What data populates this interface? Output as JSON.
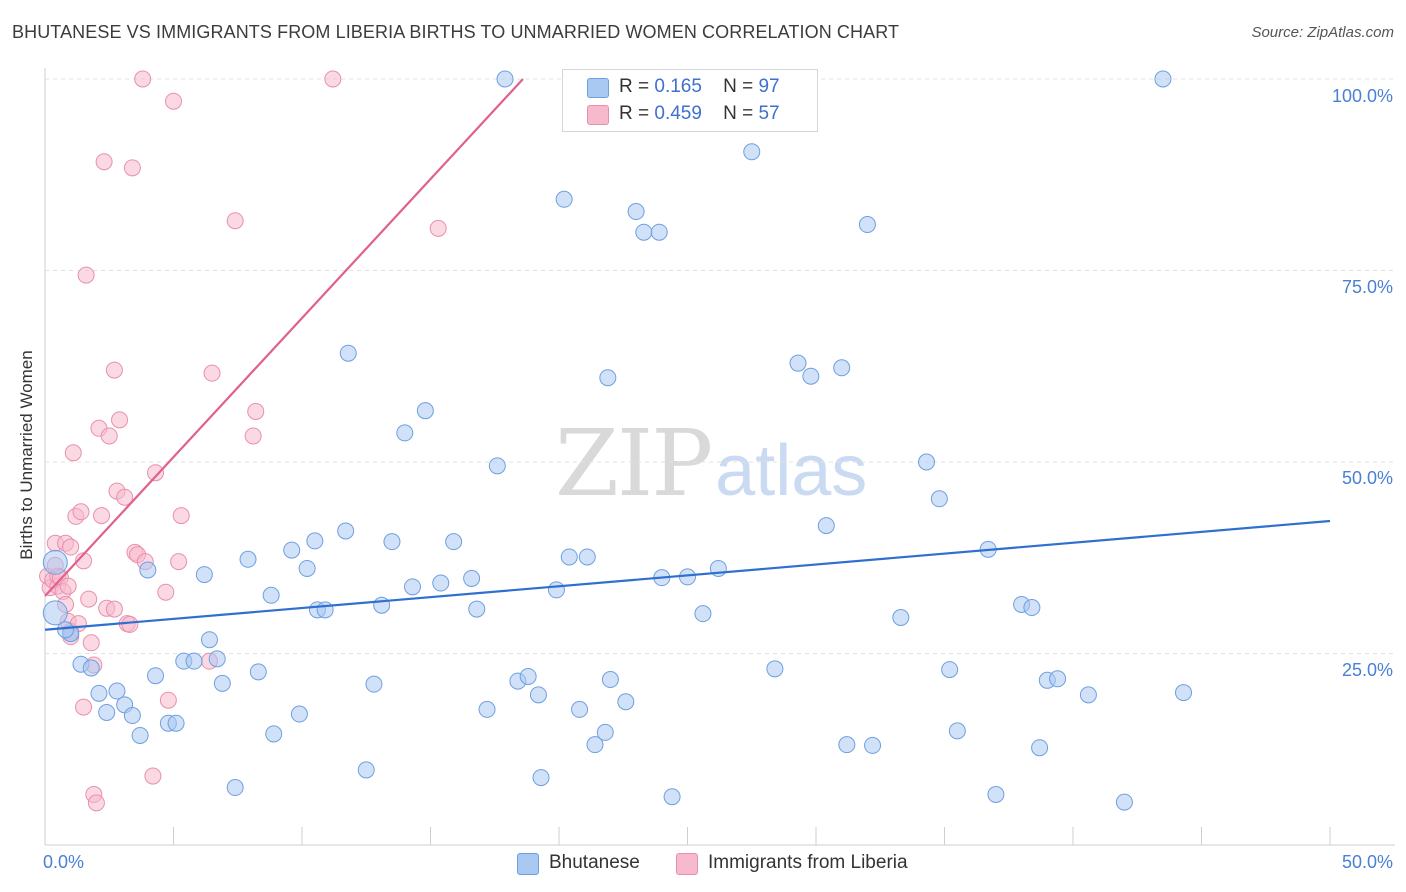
{
  "title": "BHUTANESE VS IMMIGRANTS FROM LIBERIA BIRTHS TO UNMARRIED WOMEN CORRELATION CHART",
  "source": "Source: ZipAtlas.com",
  "watermark": {
    "zip": "ZIP",
    "atlas": "atlas"
  },
  "legend": {
    "r_label": "R =",
    "n_label": "N =",
    "series": [
      {
        "r": "0.165",
        "n": "97"
      },
      {
        "r": "0.459",
        "n": "57"
      }
    ]
  },
  "bottom_legend": [
    "Bhutanese",
    "Immigrants from Liberia"
  ],
  "colors": {
    "blue_fill": "#a9c8f2",
    "blue_stroke": "#6f9fe0",
    "blue_line": "#2f6fcf",
    "pink_fill": "#f7b9cc",
    "pink_stroke": "#e98fae",
    "pink_line": "#e0608e",
    "tick_text": "#4a7fd6",
    "grid": "#e3e3e3"
  },
  "chart_data": {
    "type": "scatter",
    "title": "BHUTANESE VS IMMIGRANTS FROM LIBERIA BIRTHS TO UNMARRIED WOMEN CORRELATION CHART",
    "xlabel": "",
    "ylabel": "Births to Unmarried Women",
    "xlim": [
      0,
      50
    ],
    "ylim": [
      0,
      100
    ],
    "x_tick_labels": [
      "0.0%",
      "50.0%"
    ],
    "y_ticks": [
      25,
      50,
      75,
      100
    ],
    "y_tick_labels": [
      "25.0%",
      "50.0%",
      "75.0%",
      "100.0%"
    ],
    "grid": true,
    "legend_position": "top-center",
    "series": [
      {
        "name": "Bhutanese",
        "R": 0.165,
        "N": 97,
        "trend": {
          "x": [
            0,
            50
          ],
          "y": [
            28.1,
            42.3
          ]
        },
        "points": [
          [
            0.4,
            30.3
          ],
          [
            0.4,
            36.9
          ],
          [
            1.0,
            27.6
          ],
          [
            1.0,
            27.6
          ],
          [
            1.4,
            23.6
          ],
          [
            1.8,
            23.1
          ],
          [
            2.1,
            19.8
          ],
          [
            2.4,
            17.3
          ],
          [
            2.8,
            20.1
          ],
          [
            3.1,
            18.3
          ],
          [
            3.4,
            16.9
          ],
          [
            3.7,
            14.3
          ],
          [
            4.0,
            35.9
          ],
          [
            4.3,
            22.1
          ],
          [
            4.8,
            15.9
          ],
          [
            5.1,
            15.9
          ],
          [
            5.4,
            24.0
          ],
          [
            5.8,
            24.0
          ],
          [
            6.2,
            35.3
          ],
          [
            6.4,
            26.8
          ],
          [
            6.7,
            24.3
          ],
          [
            6.9,
            21.1
          ],
          [
            7.4,
            7.5
          ],
          [
            7.9,
            37.3
          ],
          [
            8.3,
            22.6
          ],
          [
            8.8,
            32.6
          ],
          [
            8.9,
            14.5
          ],
          [
            9.6,
            38.5
          ],
          [
            9.9,
            17.1
          ],
          [
            10.2,
            36.1
          ],
          [
            10.5,
            39.7
          ],
          [
            10.6,
            30.7
          ],
          [
            10.9,
            30.7
          ],
          [
            11.7,
            41.0
          ],
          [
            11.8,
            64.2
          ],
          [
            12.5,
            9.8
          ],
          [
            12.8,
            21.0
          ],
          [
            13.1,
            31.3
          ],
          [
            13.5,
            39.6
          ],
          [
            14.0,
            53.8
          ],
          [
            14.3,
            33.7
          ],
          [
            14.8,
            56.7
          ],
          [
            15.4,
            34.2
          ],
          [
            15.9,
            39.6
          ],
          [
            16.6,
            34.8
          ],
          [
            16.8,
            30.8
          ],
          [
            17.2,
            17.7
          ],
          [
            17.6,
            49.5
          ],
          [
            17.9,
            100.0
          ],
          [
            18.4,
            21.4
          ],
          [
            18.8,
            22.0
          ],
          [
            19.2,
            19.6
          ],
          [
            19.3,
            8.8
          ],
          [
            19.9,
            33.3
          ],
          [
            20.2,
            84.3
          ],
          [
            20.4,
            37.6
          ],
          [
            20.8,
            17.7
          ],
          [
            21.1,
            37.6
          ],
          [
            21.4,
            13.1
          ],
          [
            21.8,
            14.7
          ],
          [
            21.9,
            61.0
          ],
          [
            22.0,
            21.6
          ],
          [
            22.6,
            18.7
          ],
          [
            23.0,
            82.7
          ],
          [
            23.3,
            80.0
          ],
          [
            23.9,
            80.0
          ],
          [
            24.0,
            34.9
          ],
          [
            24.4,
            6.3
          ],
          [
            25.0,
            35.0
          ],
          [
            25.6,
            30.2
          ],
          [
            26.2,
            36.1
          ],
          [
            27.5,
            90.5
          ],
          [
            28.4,
            23.0
          ],
          [
            29.3,
            62.9
          ],
          [
            29.8,
            61.2
          ],
          [
            30.4,
            41.7
          ],
          [
            31.0,
            62.3
          ],
          [
            31.2,
            13.1
          ],
          [
            32.0,
            81.0
          ],
          [
            32.2,
            13.0
          ],
          [
            33.3,
            29.7
          ],
          [
            34.3,
            50.0
          ],
          [
            34.8,
            45.2
          ],
          [
            35.2,
            22.9
          ],
          [
            35.5,
            14.9
          ],
          [
            36.7,
            38.6
          ],
          [
            37.0,
            6.6
          ],
          [
            38.0,
            31.4
          ],
          [
            38.4,
            31.0
          ],
          [
            38.7,
            12.7
          ],
          [
            39.0,
            21.5
          ],
          [
            39.4,
            21.7
          ],
          [
            40.6,
            19.6
          ],
          [
            42.0,
            5.6
          ],
          [
            43.5,
            100.0
          ],
          [
            44.3,
            19.9
          ],
          [
            0.8,
            28.1
          ]
        ]
      },
      {
        "name": "Immigrants from Liberia",
        "R": 0.459,
        "N": 57,
        "trend": {
          "x": [
            0,
            18.6
          ],
          "y": [
            32.5,
            100.0
          ]
        },
        "points": [
          [
            0.1,
            35.1
          ],
          [
            0.2,
            33.6
          ],
          [
            0.3,
            34.6
          ],
          [
            0.4,
            36.5
          ],
          [
            0.4,
            39.4
          ],
          [
            0.5,
            33.8
          ],
          [
            0.5,
            35.1
          ],
          [
            0.6,
            34.9
          ],
          [
            0.7,
            33.1
          ],
          [
            0.8,
            31.4
          ],
          [
            0.8,
            39.4
          ],
          [
            0.9,
            29.2
          ],
          [
            0.9,
            33.8
          ],
          [
            1.0,
            27.9
          ],
          [
            1.0,
            27.2
          ],
          [
            1.0,
            38.9
          ],
          [
            1.1,
            51.2
          ],
          [
            1.2,
            42.9
          ],
          [
            1.3,
            28.9
          ],
          [
            1.4,
            43.5
          ],
          [
            1.5,
            37.1
          ],
          [
            1.5,
            18.0
          ],
          [
            1.6,
            74.4
          ],
          [
            1.7,
            32.1
          ],
          [
            1.8,
            26.4
          ],
          [
            1.9,
            23.5
          ],
          [
            1.9,
            6.6
          ],
          [
            2.0,
            5.5
          ],
          [
            2.1,
            54.4
          ],
          [
            2.2,
            43.0
          ],
          [
            2.3,
            89.2
          ],
          [
            2.4,
            30.9
          ],
          [
            2.5,
            53.4
          ],
          [
            2.7,
            30.8
          ],
          [
            2.7,
            62.0
          ],
          [
            2.8,
            46.2
          ],
          [
            2.9,
            55.5
          ],
          [
            3.1,
            45.4
          ],
          [
            3.2,
            28.9
          ],
          [
            3.3,
            28.8
          ],
          [
            3.4,
            88.4
          ],
          [
            3.5,
            38.2
          ],
          [
            3.6,
            37.9
          ],
          [
            3.8,
            100.0
          ],
          [
            3.9,
            37.0
          ],
          [
            4.2,
            9.0
          ],
          [
            4.3,
            48.6
          ],
          [
            4.7,
            33.0
          ],
          [
            4.8,
            18.9
          ],
          [
            5.0,
            97.1
          ],
          [
            5.2,
            37.0
          ],
          [
            5.3,
            43.0
          ],
          [
            6.4,
            24.0
          ],
          [
            6.5,
            61.6
          ],
          [
            7.4,
            81.5
          ],
          [
            8.1,
            53.4
          ],
          [
            8.2,
            56.6
          ]
        ]
      }
    ],
    "legend_extra": [
      {
        "name": "Immigrants from Liberia",
        "x": 11.2,
        "y": 100.0
      },
      {
        "name": "Immigrants from Liberia",
        "x": 15.3,
        "y": 80.5
      }
    ]
  }
}
